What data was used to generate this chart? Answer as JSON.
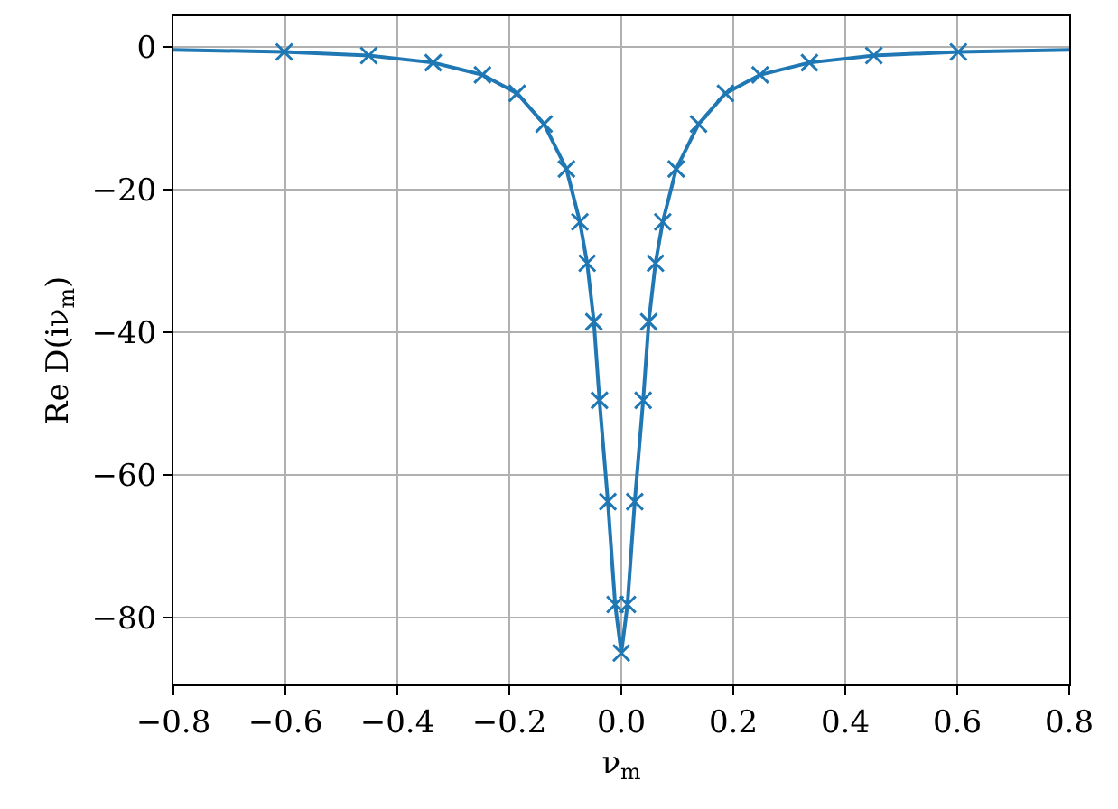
{
  "chart_data": {
    "type": "line",
    "xlabel": "ν$_{m}$",
    "ylabel": "Re D(iν$_{m}$)",
    "series": [
      {
        "color": "#1f77b4",
        "marker": "none",
        "x": [
          -0.8,
          -0.602,
          -0.451,
          -0.336,
          -0.248,
          -0.186,
          -0.138,
          -0.098,
          -0.074,
          -0.061,
          -0.049,
          -0.039,
          -0.024,
          -0.011,
          0.0,
          0.011,
          0.024,
          0.039,
          0.049,
          0.061,
          0.074,
          0.098,
          0.138,
          0.186,
          0.248,
          0.336,
          0.451,
          0.602,
          0.8
        ],
        "values": [
          -0.4,
          -0.7,
          -1.2,
          -2.2,
          -3.9,
          -6.5,
          -10.8,
          -17.1,
          -24.5,
          -30.3,
          -38.5,
          -49.5,
          -63.7,
          -78.1,
          -84.9,
          -78.1,
          -63.7,
          -49.5,
          -38.5,
          -30.3,
          -24.5,
          -17.1,
          -10.8,
          -6.5,
          -3.9,
          -2.2,
          -1.2,
          -0.7,
          -0.4
        ]
      },
      {
        "type": "scatter",
        "color": "#1f77b4",
        "marker": "cross",
        "x": [
          -0.602,
          -0.451,
          -0.336,
          -0.248,
          -0.186,
          -0.138,
          -0.098,
          -0.074,
          -0.061,
          -0.049,
          -0.039,
          -0.024,
          -0.011,
          0.0,
          0.011,
          0.024,
          0.039,
          0.049,
          0.061,
          0.074,
          0.098,
          0.138,
          0.186,
          0.248,
          0.336,
          0.451,
          0.602
        ],
        "values": [
          -0.7,
          -1.2,
          -2.2,
          -3.9,
          -6.5,
          -10.8,
          -17.1,
          -24.5,
          -30.3,
          -38.5,
          -49.5,
          -63.7,
          -78.1,
          -84.9,
          -78.1,
          -63.7,
          -49.5,
          -38.5,
          -30.3,
          -24.5,
          -17.1,
          -10.8,
          -6.5,
          -3.9,
          -2.2,
          -1.2,
          -0.7
        ]
      }
    ],
    "xlim": [
      -0.8,
      0.8
    ],
    "ylim": [
      -89.3,
      4.3
    ],
    "xticks": [
      {
        "value": -0.8,
        "label": "−0.8"
      },
      {
        "value": -0.6,
        "label": "−0.6"
      },
      {
        "value": -0.4,
        "label": "−0.4"
      },
      {
        "value": -0.2,
        "label": "−0.2"
      },
      {
        "value": 0.0,
        "label": "0.0"
      },
      0.2,
      0.4,
      0.6,
      0.8
    ],
    "yticks": [
      {
        "value": -80,
        "label": "−80"
      },
      {
        "value": -60,
        "label": "−60"
      },
      {
        "value": -40,
        "label": "−40"
      },
      {
        "value": -20,
        "label": "−20"
      },
      0
    ],
    "grid": true
  }
}
